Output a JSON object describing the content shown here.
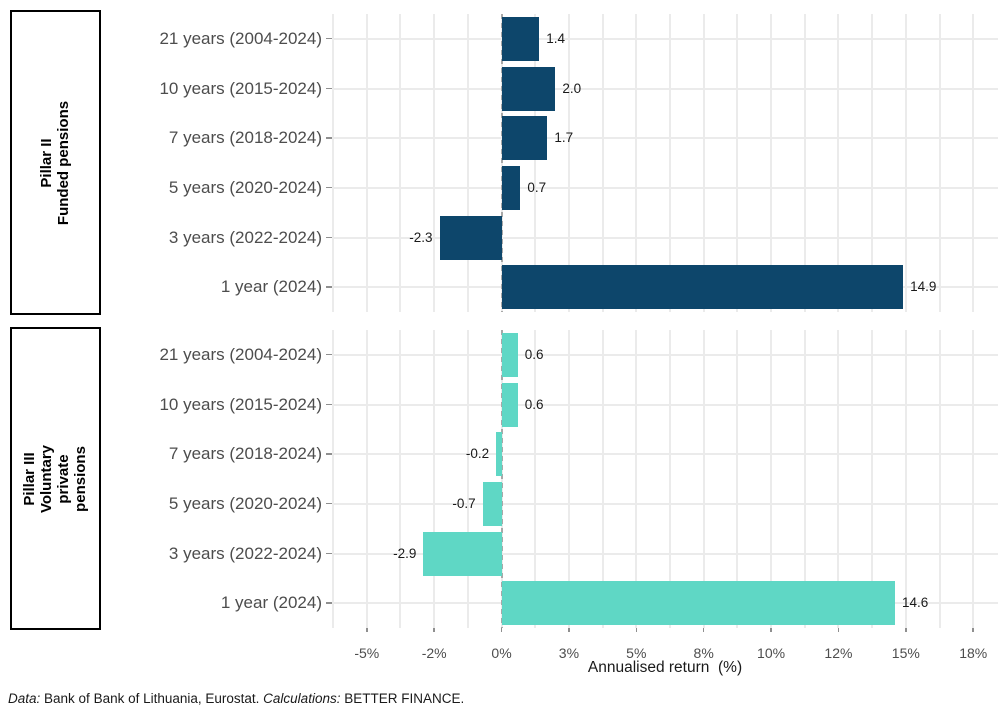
{
  "chart_data": {
    "type": "bar",
    "orientation": "horizontal",
    "xlabel": "Annualised return  (%)",
    "categories": [
      "21 years (2004-2024)",
      "10 years (2015-2024)",
      "7 years (2018-2024)",
      "5 years (2020-2024)",
      "3 years (2022-2024)",
      "1 year (2024)"
    ],
    "panels": [
      {
        "name": "Pillar II Funded pensions",
        "strip_label_lines": [
          "Pillar II",
          "Funded pensions"
        ],
        "color": "#0d466b",
        "values": [
          1.4,
          2.0,
          1.7,
          0.7,
          -2.3,
          14.9
        ]
      },
      {
        "name": "Pillar III Voluntary private pensions",
        "strip_label_lines": [
          "Pillar III",
          "Voluntary",
          "private",
          "pensions"
        ],
        "color": "#5fd7c5",
        "values": [
          0.6,
          0.6,
          -0.2,
          -0.7,
          -2.9,
          14.6
        ]
      }
    ],
    "x_ticks": [
      {
        "value": -5,
        "label": "-5%"
      },
      {
        "value": -2.5,
        "label": "-2%"
      },
      {
        "value": 0,
        "label": "0%"
      },
      {
        "value": 2.5,
        "label": "3%"
      },
      {
        "value": 5,
        "label": "5%"
      },
      {
        "value": 7.5,
        "label": "8%"
      },
      {
        "value": 10,
        "label": "10%"
      },
      {
        "value": 12.5,
        "label": "12%"
      },
      {
        "value": 15,
        "label": "15%"
      },
      {
        "value": 17.5,
        "label": "18%"
      }
    ],
    "x_domain": [
      -6.29,
      18.42
    ],
    "grid": true,
    "legend": "none",
    "zero_line_style": "dashed"
  },
  "colors": {
    "pillar2_bar": "#0d466b",
    "pillar3_bar": "#5fd7c5",
    "gridline": "#ebebeb",
    "zero_line": "#a8a8a8",
    "axis_text": "#4d4d4d",
    "value_label": "#1a1a1a",
    "strip_border": "#000000"
  },
  "footer": {
    "segments": [
      {
        "text": "Data:",
        "italic": true
      },
      {
        "text": " Bank of Bank of Lithuania, Eurostat. ",
        "italic": false
      },
      {
        "text": "Calculations:",
        "italic": true
      },
      {
        "text": " BETTER FINANCE.",
        "italic": false
      }
    ]
  }
}
